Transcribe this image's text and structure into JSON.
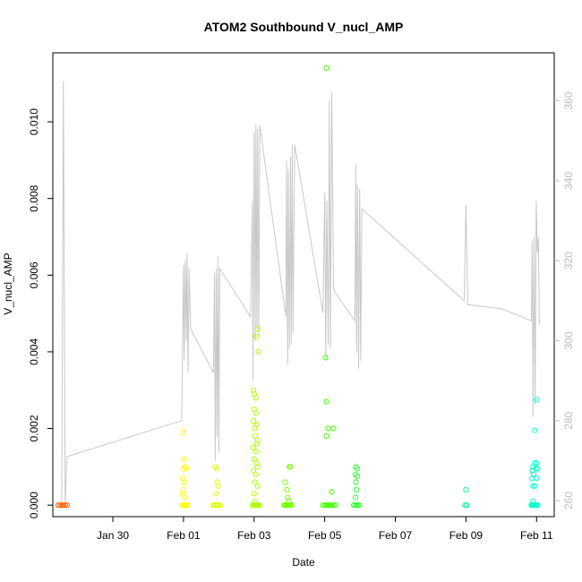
{
  "chart_data": {
    "type": "scatter",
    "title": "ATOM2 Southbound V_nucl_AMP",
    "xlabel": "Date",
    "ylabel": "V_nucl_AMP",
    "y2label": "",
    "x_ticks": [
      "Jan 30",
      "Feb 01",
      "Feb 03",
      "Feb 05",
      "Feb 07",
      "Feb 09",
      "Feb 11"
    ],
    "x_tick_days": [
      30,
      32,
      34,
      36,
      38,
      40,
      42
    ],
    "xlim_days": [
      28.3,
      42.5
    ],
    "y_ticks": [
      "0.000",
      "0.002",
      "0.004",
      "0.006",
      "0.008",
      "0.010"
    ],
    "y_tick_values": [
      0,
      0.002,
      0.004,
      0.006,
      0.008,
      0.01
    ],
    "ylim": [
      -0.0003,
      0.0118
    ],
    "y2_ticks": [
      "260",
      "280",
      "300",
      "320",
      "340",
      "360"
    ],
    "y2_tick_values": [
      260,
      280,
      300,
      320,
      340,
      360
    ],
    "y2lim": [
      256,
      372
    ],
    "grid": false,
    "series": [
      {
        "color": "#ff6600",
        "marker": "open-circle",
        "points": [
          [
            28.45,
            0
          ],
          [
            28.5,
            0
          ],
          [
            28.55,
            0
          ],
          [
            28.6,
            0
          ],
          [
            28.65,
            0
          ],
          [
            28.7,
            0
          ]
        ]
      },
      {
        "color": "#ffff00",
        "marker": "open-circle",
        "points": [
          [
            32.0,
            0.0019
          ],
          [
            32.02,
            0.0012
          ],
          [
            32.05,
            0.001
          ],
          [
            32.0,
            0.00095
          ],
          [
            32.08,
            0.00095
          ],
          [
            31.98,
            0.0007
          ],
          [
            32.02,
            0.0006
          ],
          [
            32.0,
            0.0004
          ],
          [
            31.98,
            0.0003
          ],
          [
            32.03,
            0.0002
          ],
          [
            31.97,
            0
          ],
          [
            32.0,
            0
          ],
          [
            32.03,
            0
          ],
          [
            32.06,
            0
          ],
          [
            32.1,
            0
          ],
          [
            32.12,
            0
          ]
        ]
      },
      {
        "color": "#ddff00",
        "marker": "open-circle",
        "points": [
          [
            32.9,
            0.001
          ],
          [
            32.95,
            0.00095
          ],
          [
            32.95,
            0.0006
          ],
          [
            32.98,
            0.0005
          ],
          [
            32.92,
            0.0003
          ],
          [
            32.88,
            0
          ],
          [
            32.92,
            0
          ],
          [
            32.96,
            0
          ],
          [
            33.0,
            0
          ],
          [
            33.04,
            0
          ],
          [
            32.84,
            0
          ]
        ]
      },
      {
        "color": "#aaff00",
        "marker": "open-circle",
        "points": [
          [
            34.1,
            0.0046
          ],
          [
            34.06,
            0.0044
          ],
          [
            34.12,
            0.004
          ],
          [
            33.98,
            0.003
          ],
          [
            34.0,
            0.0029
          ],
          [
            34.05,
            0.0028
          ],
          [
            34.0,
            0.0025
          ],
          [
            34.05,
            0.0024
          ],
          [
            33.98,
            0.0022
          ],
          [
            34.08,
            0.0021
          ],
          [
            34.02,
            0.002
          ],
          [
            34.03,
            0.0018
          ],
          [
            34.1,
            0.0017
          ],
          [
            34.08,
            0.0016
          ],
          [
            33.97,
            0.0015
          ],
          [
            34.05,
            0.0014
          ],
          [
            34.0,
            0.0012
          ],
          [
            34.07,
            0.0011
          ],
          [
            34.1,
            0.001
          ],
          [
            33.98,
            0.0009
          ],
          [
            34.05,
            0.0008
          ],
          [
            34.02,
            0.0006
          ],
          [
            34.1,
            0.0005
          ],
          [
            34.0,
            0.0003
          ],
          [
            34.03,
            0.0001
          ],
          [
            33.96,
            0
          ],
          [
            33.99,
            0
          ],
          [
            34.02,
            0
          ],
          [
            34.05,
            0
          ],
          [
            34.08,
            0
          ],
          [
            34.11,
            0
          ],
          [
            34.14,
            0
          ]
        ]
      },
      {
        "color": "#77ff00",
        "marker": "open-circle",
        "points": [
          [
            34.88,
            0.0006
          ],
          [
            35.0,
            0.001
          ],
          [
            35.03,
            0.001
          ],
          [
            34.93,
            0.0004
          ],
          [
            34.95,
            0.0002
          ],
          [
            34.98,
            0.0001
          ],
          [
            34.85,
            0
          ],
          [
            34.88,
            0
          ],
          [
            34.91,
            0
          ],
          [
            34.94,
            0
          ],
          [
            34.97,
            0
          ],
          [
            35.0,
            0
          ],
          [
            35.03,
            0
          ],
          [
            35.06,
            0
          ]
        ]
      },
      {
        "color": "#44ff00",
        "marker": "open-circle",
        "points": [
          [
            36.05,
            0.0114
          ],
          [
            36.02,
            0.00385
          ],
          [
            36.05,
            0.0027
          ],
          [
            36.1,
            0.002
          ],
          [
            36.25,
            0.002
          ],
          [
            36.05,
            0.0018
          ],
          [
            36.2,
            0.00035
          ],
          [
            35.95,
            0
          ],
          [
            36.0,
            0
          ],
          [
            36.05,
            0
          ],
          [
            36.1,
            0
          ],
          [
            36.15,
            0
          ],
          [
            36.2,
            0
          ],
          [
            36.25,
            0
          ],
          [
            36.3,
            0
          ]
        ]
      },
      {
        "color": "#33ff33",
        "marker": "open-circle",
        "points": [
          [
            36.88,
            0.001
          ],
          [
            36.92,
            0.00095
          ],
          [
            36.87,
            0.0008
          ],
          [
            36.92,
            0.00075
          ],
          [
            36.88,
            0.0006
          ],
          [
            36.9,
            0.0004
          ],
          [
            36.87,
            0.0002
          ],
          [
            36.82,
            0
          ],
          [
            36.86,
            0
          ],
          [
            36.9,
            0
          ],
          [
            36.94,
            0
          ],
          [
            36.98,
            0
          ]
        ]
      },
      {
        "color": "#00ff99",
        "marker": "open-circle",
        "points": [
          [
            40.0,
            0.0004
          ],
          [
            39.98,
            0
          ],
          [
            40.02,
            0
          ]
        ]
      },
      {
        "color": "#00ffcc",
        "marker": "open-circle",
        "points": [
          [
            42.0,
            0.00275
          ],
          [
            41.95,
            0.00195
          ],
          [
            41.95,
            0.0011
          ],
          [
            42.0,
            0.0011
          ],
          [
            41.9,
            0.001
          ],
          [
            41.98,
            0.00095
          ],
          [
            42.03,
            0.00095
          ],
          [
            41.88,
            0.0009
          ],
          [
            41.92,
            0.0008
          ],
          [
            41.87,
            0.0007
          ],
          [
            42.0,
            0.0007
          ],
          [
            41.9,
            0.0005
          ],
          [
            41.95,
            0.0005
          ],
          [
            41.9,
            0.0001
          ],
          [
            41.85,
            0
          ],
          [
            41.88,
            0
          ],
          [
            41.91,
            0
          ],
          [
            41.94,
            0
          ],
          [
            41.97,
            0
          ],
          [
            42.0,
            0
          ],
          [
            42.03,
            0
          ]
        ]
      }
    ],
    "secondary_line": {
      "color": "#c8c8c8",
      "axis": "right",
      "points": [
        [
          28.55,
          258
        ],
        [
          28.6,
          365
        ],
        [
          28.65,
          259
        ],
        [
          28.7,
          271
        ],
        [
          31.95,
          280
        ],
        [
          32.0,
          319
        ],
        [
          32.02,
          295
        ],
        [
          32.05,
          320
        ],
        [
          32.08,
          300
        ],
        [
          32.1,
          322
        ],
        [
          32.13,
          292
        ],
        [
          32.16,
          318
        ],
        [
          32.2,
          303
        ],
        [
          32.85,
          292
        ],
        [
          32.88,
          317
        ],
        [
          32.9,
          270
        ],
        [
          32.93,
          318
        ],
        [
          32.95,
          276
        ],
        [
          32.98,
          321
        ],
        [
          33.0,
          272
        ],
        [
          33.03,
          318
        ],
        [
          33.9,
          306
        ],
        [
          33.95,
          335
        ],
        [
          33.97,
          290
        ],
        [
          34.0,
          352
        ],
        [
          34.03,
          300
        ],
        [
          34.05,
          354
        ],
        [
          34.08,
          303
        ],
        [
          34.1,
          353
        ],
        [
          34.13,
          301
        ],
        [
          34.16,
          354
        ],
        [
          34.9,
          306
        ],
        [
          34.92,
          345
        ],
        [
          34.95,
          294
        ],
        [
          34.97,
          343
        ],
        [
          35.0,
          298
        ],
        [
          35.03,
          346
        ],
        [
          35.05,
          299
        ],
        [
          35.08,
          349
        ],
        [
          35.1,
          302
        ],
        [
          35.15,
          349
        ],
        [
          35.95,
          307
        ],
        [
          36.0,
          337
        ],
        [
          36.03,
          295
        ],
        [
          36.06,
          335
        ],
        [
          36.1,
          299
        ],
        [
          36.13,
          360
        ],
        [
          36.16,
          298
        ],
        [
          36.2,
          362
        ],
        [
          36.25,
          313
        ],
        [
          36.3,
          312
        ],
        [
          36.85,
          305
        ],
        [
          36.88,
          344
        ],
        [
          36.9,
          297
        ],
        [
          36.93,
          339
        ],
        [
          36.96,
          293
        ],
        [
          36.99,
          338
        ],
        [
          37.02,
          295
        ],
        [
          37.05,
          333
        ],
        [
          39.95,
          310
        ],
        [
          40.0,
          334
        ],
        [
          40.05,
          309
        ],
        [
          41.0,
          308
        ],
        [
          41.85,
          305
        ],
        [
          41.88,
          325
        ],
        [
          41.9,
          281
        ],
        [
          41.93,
          326
        ],
        [
          41.96,
          284
        ],
        [
          41.99,
          335
        ],
        [
          42.02,
          322
        ],
        [
          42.05,
          326
        ],
        [
          42.08,
          304
        ]
      ]
    }
  }
}
